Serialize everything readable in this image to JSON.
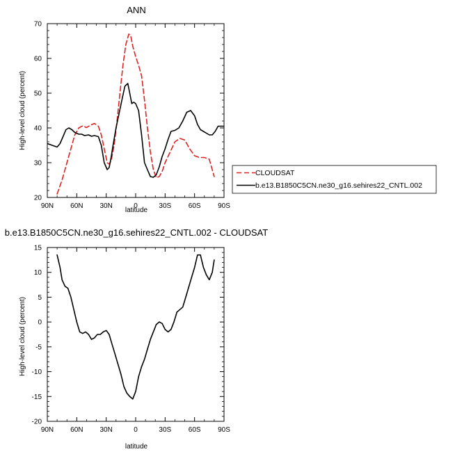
{
  "chart_data": [
    {
      "type": "line",
      "title": "ANN",
      "xlabel": "latitude",
      "ylabel": "High-level cloud (percent)",
      "xlim": [
        90,
        -90
      ],
      "ylim": [
        20,
        70
      ],
      "x_tick_values": [
        90,
        60,
        30,
        0,
        -30,
        -60,
        -90
      ],
      "x_tick_labels": [
        "90N",
        "60N",
        "30N",
        "0",
        "30S",
        "60S",
        "90S"
      ],
      "y_tick_values": [
        20,
        30,
        40,
        50,
        60,
        70
      ],
      "y_tick_labels": [
        "20",
        "30",
        "40",
        "50",
        "60",
        "70"
      ],
      "legend": "outside-right",
      "series": [
        {
          "name": "CLOUDSAT",
          "color": "#dd2222",
          "dash": "dashed",
          "x": [
            80,
            75,
            70,
            65,
            62,
            58,
            54,
            50,
            46,
            42,
            38,
            35,
            32,
            29,
            27,
            25,
            22,
            19,
            16,
            13,
            10,
            7,
            5,
            3,
            0,
            -3,
            -6,
            -9,
            -12,
            -15,
            -18,
            -21,
            -24,
            -27,
            -30,
            -35,
            -40,
            -45,
            -50,
            -55,
            -60,
            -65,
            -70,
            -75,
            -80
          ],
          "y": [
            21,
            25,
            30,
            35,
            38,
            40,
            40.6,
            40.1,
            40.8,
            41.3,
            40.5,
            38,
            34,
            30,
            29.6,
            30.5,
            35,
            42,
            50,
            58,
            64,
            67,
            66.5,
            63.5,
            60.5,
            58,
            55,
            48,
            40,
            33,
            28,
            25.7,
            26,
            27.5,
            30,
            33,
            36,
            37,
            36.5,
            34,
            32,
            31.5,
            31.5,
            31,
            26
          ]
        },
        {
          "name": "b.e13.B1850C5CN.ne30_g16.sehires22_CNTL.002",
          "color": "#000000",
          "dash": "solid",
          "x": [
            90,
            85,
            80,
            77,
            74,
            71,
            68,
            65,
            62,
            58,
            55,
            52,
            48,
            45,
            42,
            38,
            35,
            32,
            29,
            27,
            25,
            23,
            20,
            17,
            14,
            11,
            8,
            6,
            4,
            2,
            0,
            -3,
            -6,
            -9,
            -12,
            -15,
            -18,
            -21,
            -24,
            -27,
            -30,
            -33,
            -36,
            -40,
            -44,
            -48,
            -52,
            -56,
            -60,
            -63,
            -66,
            -69,
            -72,
            -75,
            -78,
            -81,
            -84,
            -87,
            -90
          ],
          "y": [
            35.5,
            35,
            34.5,
            35.5,
            37.5,
            39.5,
            40,
            39.5,
            38.7,
            38.2,
            38.2,
            37.8,
            38,
            37.6,
            37.8,
            37.5,
            35,
            30,
            28,
            28.6,
            31.5,
            35,
            40,
            44,
            48,
            52,
            52.8,
            50,
            47,
            47.4,
            47,
            45,
            38,
            30,
            28,
            26,
            25.8,
            26.5,
            28.8,
            31.8,
            34,
            36.7,
            39,
            39.3,
            40,
            42,
            44.5,
            45,
            43.5,
            41,
            39.5,
            39,
            38.5,
            38,
            38,
            39,
            40.5,
            40.5,
            40.5
          ]
        }
      ]
    },
    {
      "type": "line",
      "title": "b.e13.B1850C5CN.ne30_g16.sehires22_CNTL.002 - CLOUDSAT",
      "xlabel": "latitude",
      "ylabel": "High-level cloud (percent)",
      "xlim": [
        90,
        -90
      ],
      "ylim": [
        -20,
        15
      ],
      "x_tick_values": [
        90,
        60,
        30,
        0,
        -30,
        -60,
        -90
      ],
      "x_tick_labels": [
        "90N",
        "60N",
        "30N",
        "0",
        "30S",
        "60S",
        "90S"
      ],
      "y_tick_values": [
        -20,
        -15,
        -10,
        -5,
        0,
        5,
        10,
        15
      ],
      "y_tick_labels": [
        "-20",
        "-15",
        "-10",
        "-5",
        "0",
        "5",
        "10",
        "15"
      ],
      "series": [
        {
          "color": "#000000",
          "dash": "solid",
          "x": [
            80,
            77,
            75,
            72,
            69,
            66,
            63,
            60,
            57,
            54,
            51,
            48,
            45,
            42,
            39,
            36,
            33,
            30,
            27,
            24,
            21,
            18,
            15,
            12,
            9,
            6,
            3,
            0,
            -3,
            -6,
            -9,
            -12,
            -15,
            -18,
            -21,
            -24,
            -27,
            -30,
            -33,
            -36,
            -39,
            -42,
            -45,
            -48,
            -51,
            -54,
            -57,
            -60,
            -63,
            -66,
            -69,
            -72,
            -75,
            -78,
            -80
          ],
          "y": [
            13.5,
            11,
            8.5,
            7.2,
            6.8,
            5,
            2.5,
            0,
            -2,
            -2.3,
            -2,
            -2.5,
            -3.5,
            -3.2,
            -2.5,
            -2.5,
            -2,
            -1.7,
            -2.5,
            -4.5,
            -6.5,
            -8.5,
            -10.5,
            -13,
            -14.3,
            -15,
            -15.5,
            -14,
            -11,
            -9,
            -7.5,
            -5.5,
            -3.5,
            -2,
            -0.5,
            0,
            -0.3,
            -1.5,
            -2,
            -1.5,
            0,
            2,
            2.5,
            3,
            5,
            7,
            9,
            11,
            13.5,
            13.5,
            11,
            9.5,
            8.5,
            10,
            12.5
          ]
        }
      ]
    }
  ]
}
